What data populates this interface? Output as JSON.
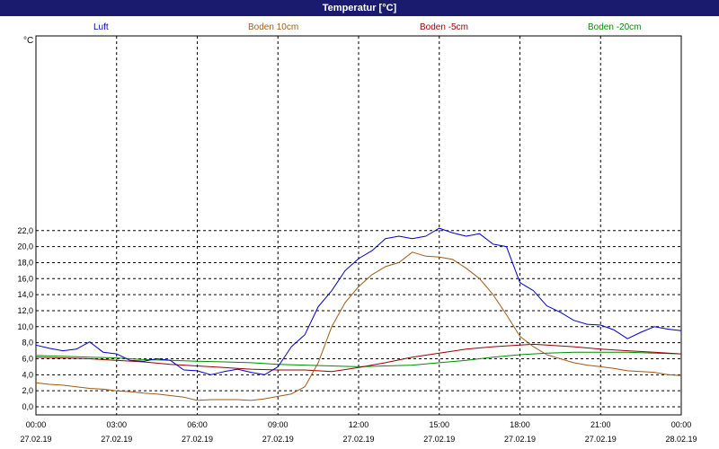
{
  "window": {
    "title": "Temperatur [°C]"
  },
  "chart_data": {
    "type": "line",
    "title": "Temperatur [°C]",
    "ylabel": "°C",
    "xlabel": "",
    "ylim": [
      0,
      23
    ],
    "xlim": [
      0,
      24
    ],
    "grid": true,
    "legend_position": "top",
    "y_ticks": [
      "0,0",
      "2,0",
      "4,0",
      "6,0",
      "8,0",
      "10,0",
      "12,0",
      "14,0",
      "16,0",
      "18,0",
      "20,0",
      "22,0"
    ],
    "x_ticks": [
      {
        "time": "00:00",
        "date": "27.02.19"
      },
      {
        "time": "03:00",
        "date": "27.02.19"
      },
      {
        "time": "06:00",
        "date": "27.02.19"
      },
      {
        "time": "09:00",
        "date": "27.02.19"
      },
      {
        "time": "12:00",
        "date": "27.02.19"
      },
      {
        "time": "15:00",
        "date": "27.02.19"
      },
      {
        "time": "18:00",
        "date": "27.02.19"
      },
      {
        "time": "21:00",
        "date": "27.02.19"
      },
      {
        "time": "00:00",
        "date": "28.02.19"
      }
    ],
    "series": [
      {
        "name": "Luft",
        "color": "#0000c8",
        "x": [
          0,
          0.5,
          1,
          1.5,
          2,
          2.5,
          3,
          3.5,
          4,
          4.5,
          5,
          5.5,
          6,
          6.5,
          7,
          7.5,
          8,
          8.5,
          9,
          9.5,
          10,
          10.5,
          11,
          11.5,
          12,
          12.5,
          13,
          13.5,
          14,
          14.5,
          15,
          15.5,
          16,
          16.5,
          17,
          17.5,
          18,
          18.5,
          19,
          19.5,
          20,
          20.5,
          21,
          21.5,
          22,
          22.5,
          23,
          23.5,
          24
        ],
        "values": [
          7.7,
          7.3,
          7.0,
          7.2,
          8.1,
          6.8,
          6.6,
          5.8,
          5.7,
          6.0,
          5.8,
          4.6,
          4.5,
          4.0,
          4.4,
          4.7,
          4.3,
          4.0,
          5.0,
          7.5,
          9.0,
          12.5,
          14.5,
          17.0,
          18.5,
          19.5,
          21.0,
          21.3,
          21.0,
          21.3,
          22.3,
          21.7,
          21.3,
          21.6,
          20.3,
          20.0,
          15.5,
          14.5,
          12.6,
          11.8,
          10.8,
          10.3,
          10.2,
          9.6,
          8.5,
          9.3,
          10.0,
          9.7,
          9.5
        ]
      },
      {
        "name": "Boden 10cm",
        "color": "#a05a14",
        "x": [
          0,
          0.5,
          1,
          1.5,
          2,
          2.5,
          3,
          3.5,
          4,
          4.5,
          5,
          5.5,
          6,
          6.5,
          7,
          7.5,
          8,
          8.5,
          9,
          9.5,
          10,
          10.5,
          11,
          11.5,
          12,
          12.5,
          13,
          13.5,
          14,
          14.5,
          15,
          15.5,
          16,
          16.5,
          17,
          17.5,
          18,
          18.5,
          19,
          19.5,
          20,
          20.5,
          21,
          21.5,
          22,
          22.5,
          23,
          23.5,
          24
        ],
        "values": [
          3.0,
          2.8,
          2.7,
          2.5,
          2.3,
          2.2,
          2.0,
          1.9,
          1.7,
          1.6,
          1.4,
          1.2,
          0.8,
          0.9,
          0.9,
          0.9,
          0.8,
          1.0,
          1.3,
          1.6,
          2.5,
          5.5,
          10.0,
          13.0,
          15.0,
          16.5,
          17.5,
          18.0,
          19.3,
          18.8,
          18.7,
          18.4,
          17.3,
          16.0,
          14.0,
          11.5,
          8.8,
          7.5,
          6.5,
          6.0,
          5.5,
          5.2,
          5.0,
          4.8,
          4.5,
          4.4,
          4.3,
          4.0,
          3.9
        ]
      },
      {
        "name": "Boden -5cm",
        "color": "#960000",
        "x": [
          0,
          1,
          2,
          3,
          4,
          5,
          6,
          7,
          8,
          9,
          10,
          11,
          12,
          13,
          14,
          15,
          16,
          17,
          18,
          18.5,
          19,
          20,
          21,
          22,
          23,
          24
        ],
        "values": [
          6.2,
          6.1,
          6.0,
          5.8,
          5.6,
          5.3,
          5.1,
          4.9,
          4.7,
          4.6,
          4.6,
          4.4,
          4.9,
          5.5,
          6.2,
          6.7,
          7.2,
          7.5,
          7.7,
          7.8,
          7.7,
          7.5,
          7.2,
          7.0,
          6.8,
          6.6
        ]
      },
      {
        "name": "Boden -20cm",
        "color": "#008c00",
        "x": [
          0,
          1,
          2,
          3,
          4,
          5,
          6,
          7,
          8,
          9,
          10,
          11,
          12,
          13,
          14,
          15,
          16,
          17,
          18,
          19,
          20,
          21,
          22,
          23,
          24
        ],
        "values": [
          6.4,
          6.3,
          6.2,
          6.1,
          5.9,
          5.8,
          5.7,
          5.6,
          5.5,
          5.3,
          5.2,
          5.1,
          5.0,
          5.1,
          5.2,
          5.5,
          5.8,
          6.2,
          6.5,
          6.7,
          6.8,
          6.8,
          6.8,
          6.7,
          6.6
        ]
      }
    ]
  }
}
